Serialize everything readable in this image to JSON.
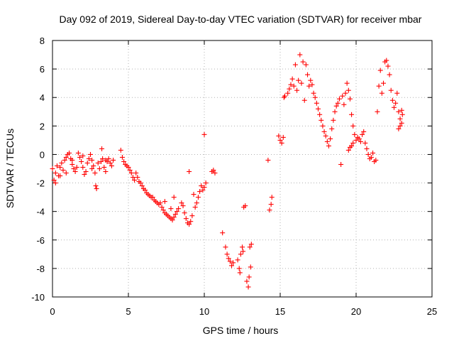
{
  "chart_data": {
    "type": "scatter",
    "title": "Day 092 of 2019, Sidereal Day-to-day VTEC variation (SDTVAR) for receiver mbar",
    "xlabel": "GPS time / hours",
    "ylabel": "SDTVAR / TECUs",
    "xlim": [
      0,
      25
    ],
    "ylim": [
      -10,
      8
    ],
    "xticks": [
      0,
      5,
      10,
      15,
      20,
      25
    ],
    "yticks": [
      -10,
      -8,
      -6,
      -4,
      -2,
      0,
      2,
      4,
      6,
      8
    ],
    "xtick_labels": [
      "0",
      "5",
      "10",
      "15",
      "20",
      "25"
    ],
    "ytick_labels": [
      "-10",
      "-8",
      "-6",
      "-4",
      "-2",
      "0",
      "2",
      "4",
      "6",
      "8"
    ],
    "grid": true,
    "marker": "+",
    "color": "#ff0000",
    "series": [
      {
        "name": "SDTVAR",
        "points": [
          [
            0.0,
            -1.0
          ],
          [
            0.1,
            -1.8
          ],
          [
            0.2,
            -1.3
          ],
          [
            0.3,
            -0.8
          ],
          [
            0.4,
            -1.5
          ],
          [
            0.5,
            -0.9
          ],
          [
            0.6,
            -0.6
          ],
          [
            0.7,
            -1.1
          ],
          [
            0.8,
            -0.4
          ],
          [
            0.9,
            -0.2
          ],
          [
            1.0,
            0.0
          ],
          [
            1.1,
            0.1
          ],
          [
            1.2,
            -0.3
          ],
          [
            1.3,
            -0.7
          ],
          [
            1.4,
            -1.0
          ],
          [
            1.5,
            -1.2
          ],
          [
            1.6,
            -0.9
          ],
          [
            1.7,
            0.1
          ],
          [
            1.8,
            -0.2
          ],
          [
            1.9,
            -0.5
          ],
          [
            2.0,
            -0.9
          ],
          [
            2.1,
            -1.4
          ],
          [
            2.2,
            -1.2
          ],
          [
            2.3,
            -0.6
          ],
          [
            2.4,
            -0.3
          ],
          [
            2.5,
            0.0
          ],
          [
            2.6,
            -0.4
          ],
          [
            2.7,
            -0.8
          ],
          [
            2.8,
            -1.3
          ],
          [
            2.85,
            -2.2
          ],
          [
            2.9,
            -2.4
          ],
          [
            3.0,
            -0.6
          ],
          [
            3.1,
            -1.0
          ],
          [
            3.2,
            -0.5
          ],
          [
            3.25,
            0.4
          ],
          [
            3.3,
            -0.3
          ],
          [
            3.4,
            -0.9
          ],
          [
            3.5,
            -1.2
          ],
          [
            3.6,
            -0.5
          ],
          [
            3.7,
            -0.3
          ],
          [
            3.8,
            -0.6
          ],
          [
            3.9,
            -0.8
          ],
          [
            4.0,
            -0.4
          ],
          [
            0.2,
            -2.0
          ],
          [
            0.5,
            -1.5
          ],
          [
            0.9,
            -1.3
          ],
          [
            1.3,
            -0.4
          ],
          [
            2.0,
            -0.1
          ],
          [
            2.6,
            -1.0
          ],
          [
            3.5,
            -0.4
          ],
          [
            4.5,
            0.3
          ],
          [
            4.6,
            -0.2
          ],
          [
            4.7,
            -0.5
          ],
          [
            4.8,
            -0.7
          ],
          [
            4.9,
            -0.8
          ],
          [
            5.0,
            -0.9
          ],
          [
            5.1,
            -1.1
          ],
          [
            5.2,
            -1.3
          ],
          [
            5.3,
            -1.6
          ],
          [
            5.4,
            -1.8
          ],
          [
            5.5,
            -1.3
          ],
          [
            5.6,
            -1.6
          ],
          [
            5.7,
            -1.9
          ],
          [
            5.8,
            -2.0
          ],
          [
            5.9,
            -2.2
          ],
          [
            6.0,
            -2.4
          ],
          [
            6.1,
            -2.5
          ],
          [
            6.2,
            -2.7
          ],
          [
            6.3,
            -2.8
          ],
          [
            6.4,
            -2.9
          ],
          [
            6.5,
            -3.0
          ],
          [
            6.6,
            -3.0
          ],
          [
            6.7,
            -3.2
          ],
          [
            6.8,
            -3.3
          ],
          [
            6.9,
            -3.4
          ],
          [
            7.0,
            -3.5
          ],
          [
            7.1,
            -3.4
          ],
          [
            7.2,
            -3.7
          ],
          [
            7.3,
            -3.9
          ],
          [
            7.4,
            -4.1
          ],
          [
            7.5,
            -4.2
          ],
          [
            7.6,
            -4.3
          ],
          [
            7.7,
            -4.4
          ],
          [
            7.8,
            -4.5
          ],
          [
            7.9,
            -4.6
          ],
          [
            8.0,
            -4.4
          ],
          [
            8.1,
            -4.2
          ],
          [
            8.2,
            -4.0
          ],
          [
            8.3,
            -3.8
          ],
          [
            7.4,
            -3.3
          ],
          [
            7.8,
            -3.8
          ],
          [
            8.0,
            -3.0
          ],
          [
            8.5,
            -3.4
          ],
          [
            8.6,
            -3.6
          ],
          [
            8.7,
            -4.1
          ],
          [
            8.8,
            -4.5
          ],
          [
            8.9,
            -4.8
          ],
          [
            9.0,
            -4.9
          ],
          [
            9.1,
            -4.7
          ],
          [
            9.2,
            -4.3
          ],
          [
            9.3,
            -2.8
          ],
          [
            9.4,
            -3.7
          ],
          [
            9.5,
            -3.4
          ],
          [
            9.6,
            -3.0
          ],
          [
            9.7,
            -2.6
          ],
          [
            9.8,
            -2.2
          ],
          [
            9.9,
            -2.5
          ],
          [
            10.0,
            -2.3
          ],
          [
            10.1,
            -2.0
          ],
          [
            9.0,
            -1.2
          ],
          [
            10.0,
            1.4
          ],
          [
            10.5,
            -1.2
          ],
          [
            10.6,
            -1.1
          ],
          [
            10.7,
            -1.3
          ],
          [
            11.2,
            -5.5
          ],
          [
            11.4,
            -6.5
          ],
          [
            11.5,
            -7.0
          ],
          [
            11.6,
            -7.3
          ],
          [
            11.7,
            -7.5
          ],
          [
            11.8,
            -7.8
          ],
          [
            11.9,
            -7.6
          ],
          [
            12.2,
            -7.4
          ],
          [
            12.3,
            -8.0
          ],
          [
            12.35,
            -8.3
          ],
          [
            12.4,
            -7.0
          ],
          [
            12.5,
            -6.5
          ],
          [
            12.55,
            -6.8
          ],
          [
            12.6,
            -3.7
          ],
          [
            12.7,
            -3.6
          ],
          [
            12.8,
            -8.9
          ],
          [
            12.9,
            -9.3
          ],
          [
            12.95,
            -8.6
          ],
          [
            13.0,
            -6.5
          ],
          [
            13.05,
            -7.9
          ],
          [
            13.1,
            -6.3
          ],
          [
            14.2,
            -0.4
          ],
          [
            14.3,
            -3.9
          ],
          [
            14.4,
            -3.5
          ],
          [
            14.45,
            -3.0
          ],
          [
            14.9,
            1.3
          ],
          [
            15.0,
            1.0
          ],
          [
            15.1,
            0.8
          ],
          [
            15.2,
            1.2
          ],
          [
            15.25,
            4.0
          ],
          [
            15.3,
            4.1
          ],
          [
            15.5,
            4.3
          ],
          [
            15.6,
            4.6
          ],
          [
            15.7,
            4.9
          ],
          [
            15.8,
            5.3
          ],
          [
            15.9,
            4.8
          ],
          [
            16.0,
            6.3
          ],
          [
            16.1,
            4.5
          ],
          [
            16.2,
            5.2
          ],
          [
            16.3,
            7.0
          ],
          [
            16.4,
            5.0
          ],
          [
            16.5,
            6.5
          ],
          [
            16.6,
            3.8
          ],
          [
            16.7,
            6.3
          ],
          [
            16.8,
            5.6
          ],
          [
            16.9,
            4.8
          ],
          [
            17.0,
            5.2
          ],
          [
            17.1,
            4.9
          ],
          [
            17.2,
            4.3
          ],
          [
            17.3,
            4.0
          ],
          [
            17.4,
            3.6
          ],
          [
            17.5,
            3.2
          ],
          [
            17.6,
            2.8
          ],
          [
            17.7,
            2.4
          ],
          [
            17.8,
            2.0
          ],
          [
            17.9,
            1.6
          ],
          [
            18.0,
            1.3
          ],
          [
            18.1,
            0.9
          ],
          [
            18.2,
            0.6
          ],
          [
            18.3,
            1.1
          ],
          [
            18.4,
            1.8
          ],
          [
            18.5,
            2.4
          ],
          [
            18.6,
            3.0
          ],
          [
            18.7,
            3.4
          ],
          [
            18.8,
            3.6
          ],
          [
            18.9,
            3.9
          ],
          [
            19.0,
            -0.7
          ],
          [
            19.1,
            4.1
          ],
          [
            19.2,
            3.5
          ],
          [
            19.3,
            4.3
          ],
          [
            19.4,
            5.0
          ],
          [
            19.5,
            4.5
          ],
          [
            19.6,
            3.9
          ],
          [
            19.7,
            2.8
          ],
          [
            19.8,
            2.0
          ],
          [
            19.9,
            1.4
          ],
          [
            19.5,
            0.3
          ],
          [
            19.6,
            0.5
          ],
          [
            19.7,
            0.6
          ],
          [
            19.8,
            0.8
          ],
          [
            20.0,
            1.0
          ],
          [
            20.1,
            1.2
          ],
          [
            20.2,
            1.1
          ],
          [
            20.3,
            0.9
          ],
          [
            20.4,
            1.4
          ],
          [
            20.5,
            1.6
          ],
          [
            20.6,
            0.8
          ],
          [
            20.7,
            0.4
          ],
          [
            20.8,
            0.0
          ],
          [
            20.9,
            -0.3
          ],
          [
            21.0,
            -0.2
          ],
          [
            21.1,
            0.1
          ],
          [
            21.2,
            -0.5
          ],
          [
            21.3,
            -0.4
          ],
          [
            21.4,
            3.0
          ],
          [
            21.5,
            4.8
          ],
          [
            21.6,
            5.9
          ],
          [
            21.7,
            4.3
          ],
          [
            21.8,
            5.0
          ],
          [
            21.9,
            6.5
          ],
          [
            22.0,
            6.6
          ],
          [
            22.1,
            6.2
          ],
          [
            22.2,
            5.6
          ],
          [
            22.3,
            4.5
          ],
          [
            22.4,
            3.8
          ],
          [
            22.5,
            3.3
          ],
          [
            22.6,
            3.6
          ],
          [
            22.7,
            4.3
          ],
          [
            22.8,
            3.0
          ],
          [
            22.9,
            2.5
          ],
          [
            23.0,
            2.2
          ],
          [
            22.8,
            1.8
          ],
          [
            22.9,
            2.0
          ],
          [
            23.0,
            3.1
          ],
          [
            23.05,
            2.8
          ]
        ]
      }
    ]
  }
}
